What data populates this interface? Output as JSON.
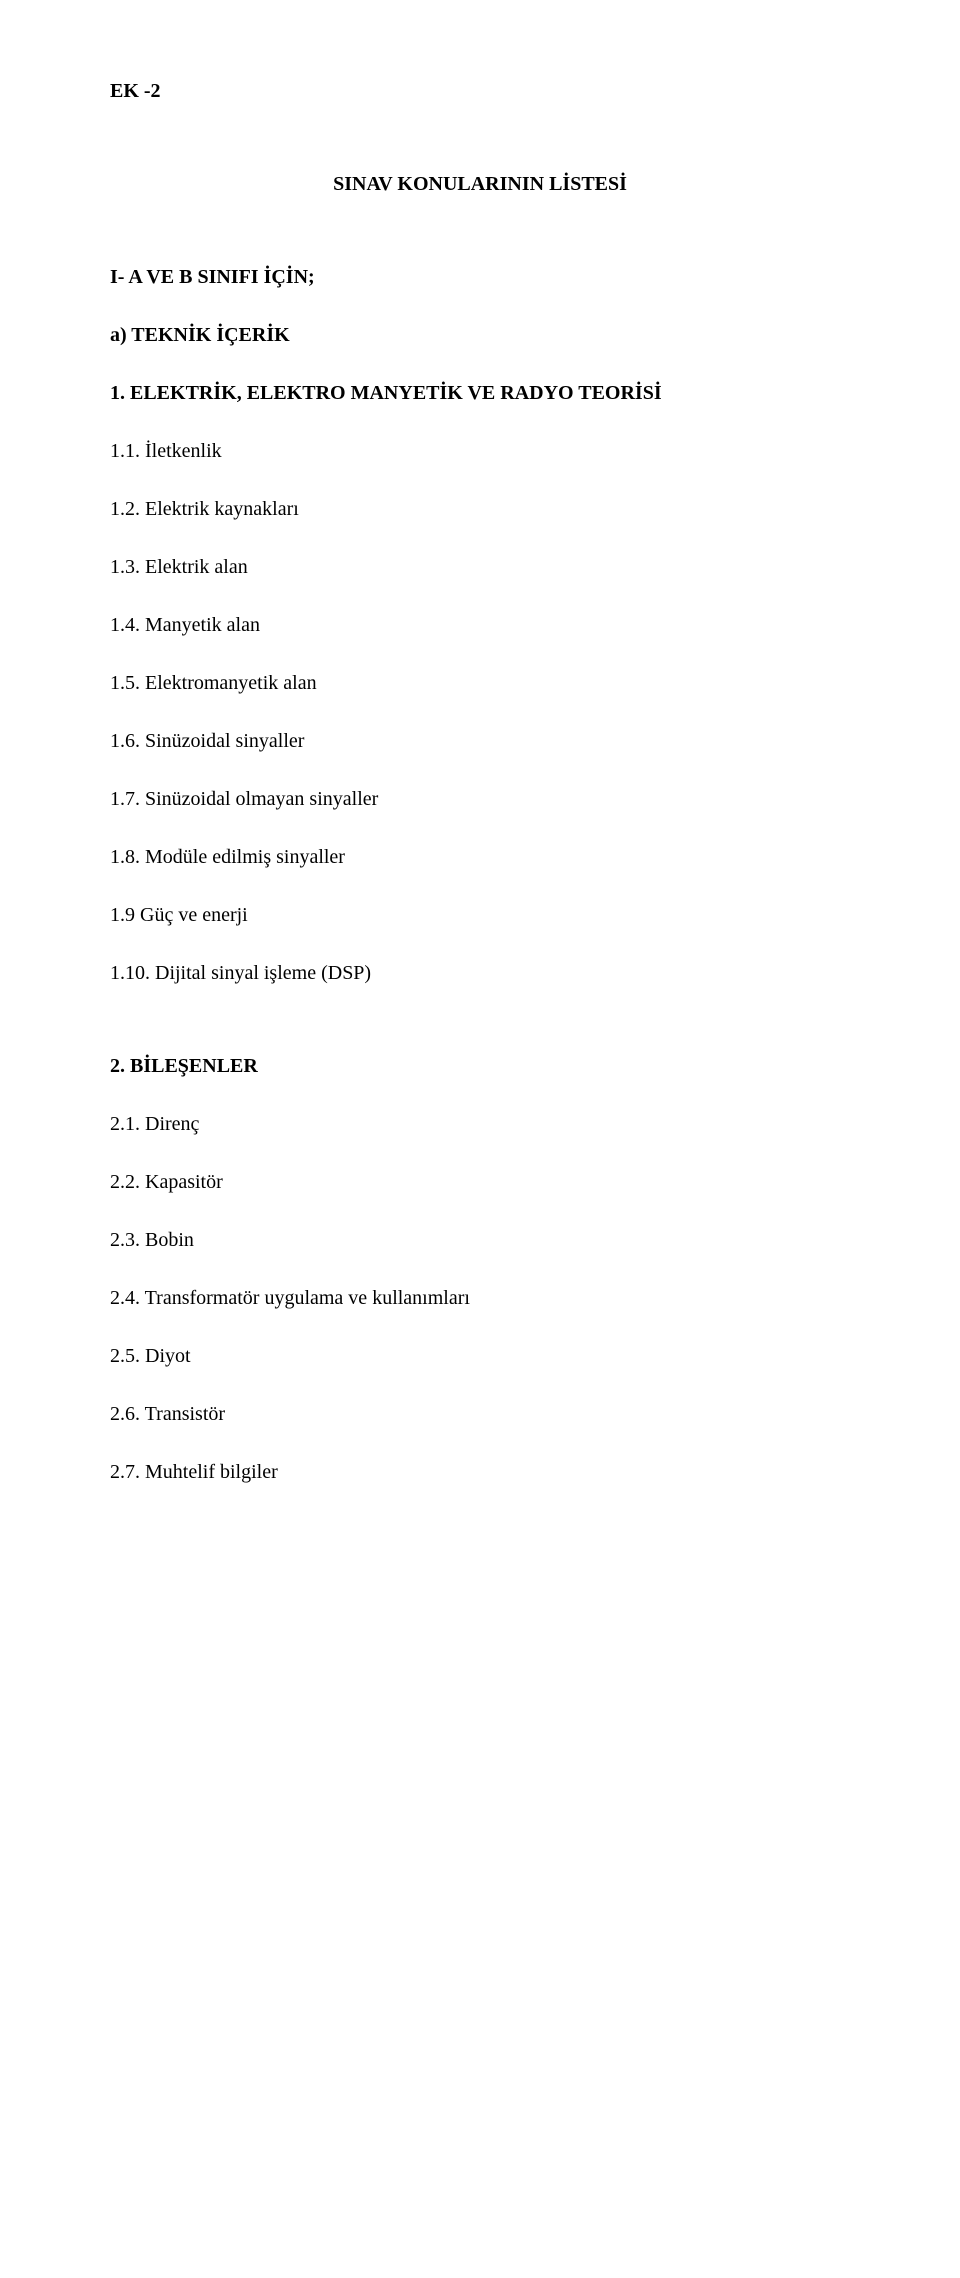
{
  "header": {
    "label": "EK -2"
  },
  "title": "SINAV KONULARININ LİSTESİ",
  "section_a": {
    "label": "I- A VE B SINIFI İÇİN;",
    "subsection": "a) TEKNİK İÇERİK"
  },
  "chapter1": {
    "title": "1. ELEKTRİK, ELEKTRO MANYETİK VE RADYO TEORİSİ",
    "items": [
      "1.1. İletkenlik",
      "1.2. Elektrik kaynakları",
      "1.3. Elektrik alan",
      "1.4. Manyetik alan",
      "1.5. Elektromanyetik alan",
      "1.6. Sinüzoidal sinyaller",
      "1.7. Sinüzoidal olmayan sinyaller",
      "1.8. Modüle edilmiş sinyaller",
      "1.9 Güç ve enerji",
      "1.10. Dijital sinyal işleme (DSP)"
    ]
  },
  "chapter2": {
    "title": "2. BİLEŞENLER",
    "items": [
      "2.1. Direnç",
      "2.2. Kapasitör",
      "2.3. Bobin",
      "2.4. Transformatör uygulama ve kullanımları",
      "2.5. Diyot",
      "2.6. Transistör",
      "2.7. Muhtelif bilgiler"
    ]
  }
}
